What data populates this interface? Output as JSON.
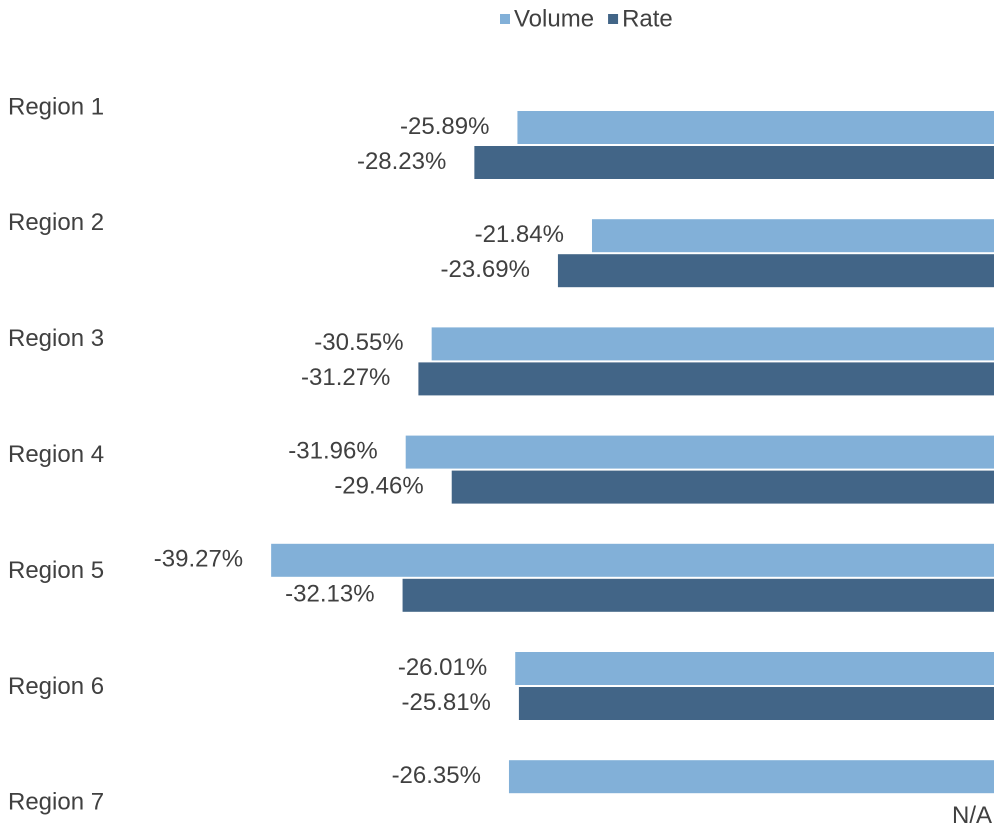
{
  "chart_data": {
    "type": "barh",
    "categories": [
      "Region 1",
      "Region 2",
      "Region 3",
      "Region 4",
      "Region 5",
      "Region 6",
      "Region 7"
    ],
    "series": [
      {
        "name": "Volume",
        "color": "#82b0d8",
        "values": [
          -25.89,
          -21.84,
          -30.55,
          -31.96,
          -39.27,
          -26.01,
          -26.35
        ],
        "value_labels": [
          "-25.89%",
          "-21.84%",
          "-30.55%",
          "-31.96%",
          "-39.27%",
          "-26.01%",
          "-26.35%"
        ]
      },
      {
        "name": "Rate",
        "color": "#426587",
        "values": [
          -28.23,
          -23.69,
          -31.27,
          -29.46,
          -32.13,
          -25.81,
          null
        ],
        "value_labels": [
          "-28.23%",
          "-23.69%",
          "-31.27%",
          "-29.46%",
          "-32.13%",
          "-25.81%",
          "N/A"
        ]
      }
    ],
    "xlim": [
      -54,
      0
    ],
    "legend": "top"
  }
}
